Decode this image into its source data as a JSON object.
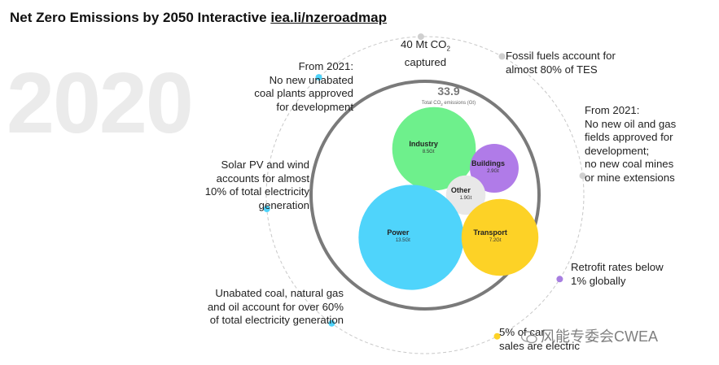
{
  "title": {
    "text": "Net Zero Emissions by 2050 Interactive ",
    "link": "iea.li/nzeroadmap"
  },
  "year": "2020",
  "chart_data": {
    "type": "bubble",
    "title": "Net Zero Emissions by 2050 Interactive",
    "unit": "Gt",
    "total": {
      "value": "33.9",
      "label_pre": "Total CO",
      "label_sub": "2",
      "label_post": " emissions (Gt)"
    },
    "categories": [
      "Industry",
      "Buildings",
      "Other",
      "Power",
      "Transport"
    ],
    "values": [
      8.5,
      2.9,
      1.9,
      13.5,
      7.2
    ],
    "bubbles": [
      {
        "name": "Industry",
        "value_label": "8.5Gt",
        "value": 8.5,
        "color": "#6ef08c"
      },
      {
        "name": "Buildings",
        "value_label": "2.9Gt",
        "value": 2.9,
        "color": "#b07be8"
      },
      {
        "name": "Other",
        "value_label": "1.9Gt",
        "value": 1.9,
        "color": "#e8e8e8"
      },
      {
        "name": "Power",
        "value_label": "13.5Gt",
        "value": 13.5,
        "color": "#4fd4fb"
      },
      {
        "name": "Transport",
        "value_label": "7.2Gt",
        "value": 7.2,
        "color": "#fdd226"
      }
    ],
    "markers": [
      {
        "name": "co2-captured",
        "color": "#cfcfcf"
      },
      {
        "name": "fossil-tes",
        "color": "#cfcfcf"
      },
      {
        "name": "oil-gas-fields",
        "color": "#cfcfcf"
      },
      {
        "name": "retrofit",
        "color": "#a77ee0"
      },
      {
        "name": "ev-sales",
        "color": "#fdd226"
      },
      {
        "name": "unabated-coal-gas",
        "color": "#4fd4fb"
      },
      {
        "name": "solar-wind",
        "color": "#4fd4fb"
      },
      {
        "name": "coal-plants",
        "color": "#4fd4fb"
      }
    ]
  },
  "annotations": {
    "co2_captured": {
      "line1_pre": "40 Mt CO",
      "line1_sub": "2",
      "line2": "captured"
    },
    "fossil_tes": [
      "Fossil fuels account for",
      "almost 80% of TES"
    ],
    "oil_gas_fields": [
      "From 2021:",
      "No new oil and gas",
      "fields approved for",
      "development;",
      "no new coal mines",
      "or mine extensions"
    ],
    "retrofit": [
      "Retrofit rates below",
      "1% globally"
    ],
    "ev_sales": [
      "5% of car",
      "sales are electric"
    ],
    "unabated": [
      "Unabated coal, natural gas",
      "and oil account for over 60%",
      "of total electricity generation"
    ],
    "solar_wind": [
      "Solar PV and wind",
      "accounts for almost",
      "10% of total electricity",
      "generation"
    ],
    "coal_plants": [
      "From 2021:",
      "No new unabated",
      "coal plants approved",
      "for development"
    ]
  },
  "watermark": "风能专委会CWEA",
  "colors": {
    "ring": "#7a7a7a",
    "dashed": "#c8c8c8",
    "text": "#222222",
    "year": "#ebebeb"
  }
}
